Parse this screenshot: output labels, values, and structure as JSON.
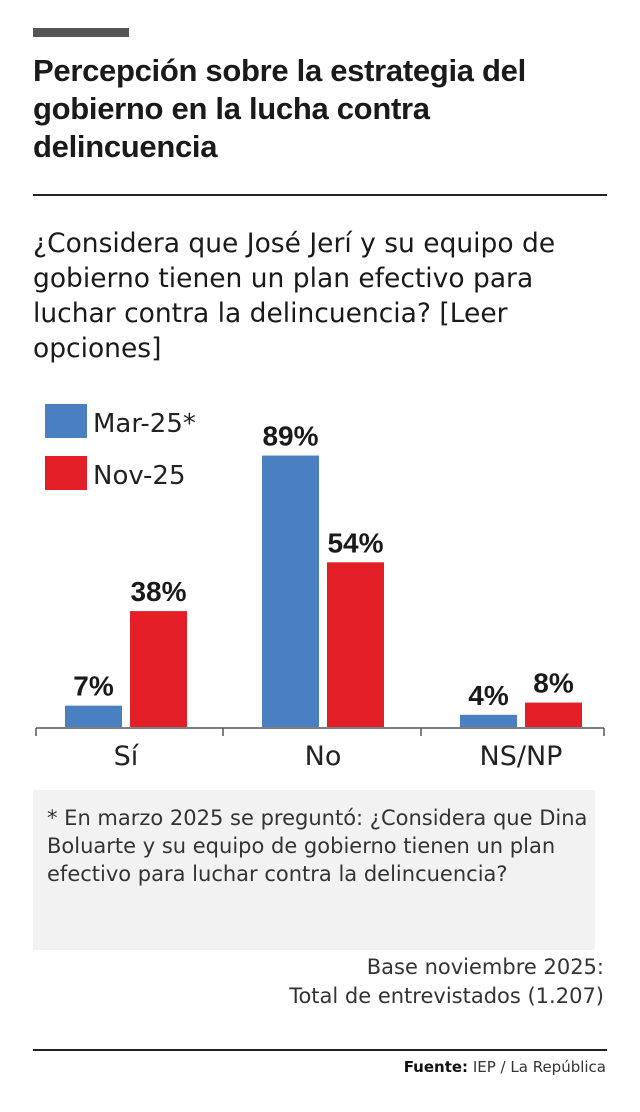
{
  "title": "Percepción sobre la estrategia del gobierno en la lucha contra delincuencia",
  "question": "¿Considera que José Jerí y su equipo de gobierno tienen un plan efectivo para luchar contra la delincuencia? [Leer opciones]",
  "note": "* En marzo 2025 se preguntó: ¿Considera que Dina Boluarte y su equipo de gobierno tienen un plan efectivo para luchar contra la delincuencia?",
  "base_line1": "Base noviembre 2025:",
  "base_line2": "Total de entrevistados (1.207)",
  "source_label": "Fuente:",
  "source_value": "IEP / La República",
  "chart_data": {
    "type": "bar",
    "categories": [
      "Sí",
      "No",
      "NS/NP"
    ],
    "series": [
      {
        "name": "Mar-25*",
        "color": "#4a7fc1",
        "values": [
          7,
          89,
          4
        ]
      },
      {
        "name": "Nov-25",
        "color": "#e31e26",
        "values": [
          38,
          54,
          8
        ]
      }
    ],
    "value_suffix": "%",
    "legend": "top-left",
    "grid": false,
    "ylim": [
      0,
      100
    ]
  }
}
